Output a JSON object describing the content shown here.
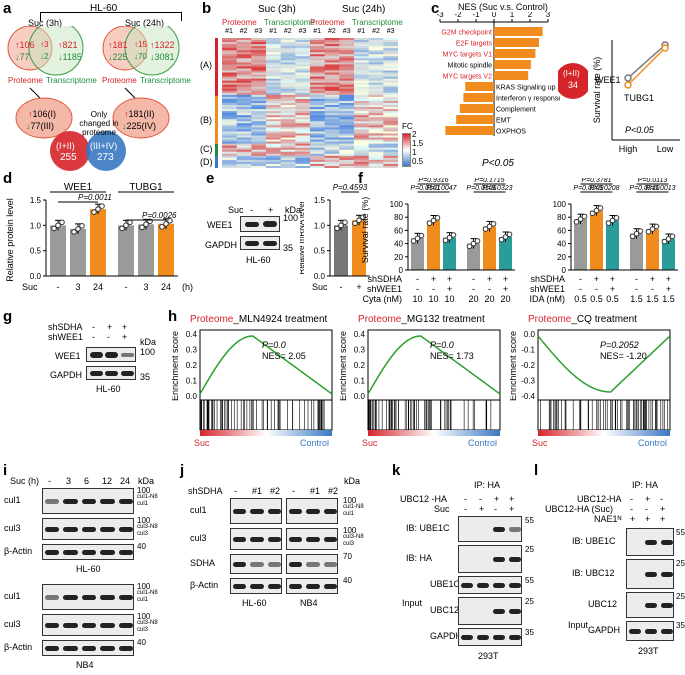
{
  "panel_labels": [
    "a",
    "b",
    "c",
    "d",
    "e",
    "f",
    "g",
    "h",
    "i",
    "j",
    "k",
    "l"
  ],
  "a": {
    "title": "HL-60",
    "suc3": "Suc (3h)",
    "suc24": "Suc (24h)",
    "proteome": "Proteome",
    "transcriptome": "Transcriptome",
    "v3": {
      "up_p": "106",
      "down_p": "77",
      "up_both": "3",
      "down_both": "2",
      "up_t": "821",
      "down_t": "1185"
    },
    "v24": {
      "up_p": "181",
      "down_p": "225",
      "up_both": "15",
      "down_both": "70",
      "up_t": "1322",
      "down_t": "3081"
    },
    "only_changed": "Only changed in proteome",
    "circle3": {
      "l1": "106(I)",
      "l2": "77(III)"
    },
    "circle24": {
      "l1": "181(II)",
      "l2": "225(IV)"
    },
    "sum1": {
      "label": "(I+II)",
      "value": "255"
    },
    "sum2": {
      "label": "(III+IV)",
      "value": "273"
    }
  },
  "b": {
    "suc3": "Suc (3h)",
    "suc24": "Suc (24h)",
    "proteome": "Proteome",
    "transcriptome": "Transcriptome",
    "reps": [
      "#1",
      "#2",
      "#3",
      "#1",
      "#2",
      "#3",
      "#1",
      "#2",
      "#3",
      "#1",
      "#2",
      "#3"
    ],
    "clusters": [
      "(A)",
      "(B)",
      "(C)",
      "(D)"
    ],
    "fc_label": "FC",
    "fc_ticks": [
      "2",
      "1.5",
      "1",
      "0.5"
    ]
  },
  "c": {
    "title": "NES (Suc v.s. Control)",
    "chart_data": {
      "type": "bar",
      "title": "NES (Suc v.s. Control)",
      "categories": [
        "G2M checkpoint",
        "E2F targets",
        "MYC targets V1",
        "Mitotic spindle",
        "MYC targets V2",
        "KRAS Signaling up",
        "Interferon γ response",
        "Complement",
        "EMT",
        "OXPHOS"
      ],
      "values": [
        2.7,
        2.5,
        2.3,
        2.05,
        1.9,
        -1.6,
        -1.7,
        -1.9,
        -2.1,
        -2.7
      ],
      "xlim": [
        -3,
        3
      ],
      "xticks": [
        "-3",
        "-2",
        "-1",
        "0",
        "1",
        "2",
        "3"
      ],
      "highlight": [
        "G2M checkpoint",
        "E2F targets",
        "MYC targets V1",
        "MYC targets V2"
      ]
    },
    "pval": "P<0.05",
    "circle": {
      "label": "(I+II)",
      "value": "34"
    },
    "survival": {
      "type": "line",
      "ylabel": "Survival rate (%)",
      "categories": [
        "High",
        "Low"
      ],
      "series": [
        {
          "name": "WEE1",
          "values": [
            0.62,
            0.95
          ]
        },
        {
          "name": "TUBG1",
          "values": [
            0.55,
            0.92
          ]
        }
      ],
      "pval": "P<0.05"
    }
  },
  "d": {
    "chart_data": {
      "type": "bar",
      "ylabel": "Relative protein level",
      "groups": [
        "WEE1",
        "TUBG1"
      ],
      "categories": [
        "-",
        "3",
        "24",
        "-",
        "3",
        "24"
      ],
      "values": [
        1.0,
        0.93,
        1.32,
        1.0,
        1.02,
        1.03
      ],
      "ylim": [
        0,
        1.5
      ],
      "yticks": [
        "0.0",
        "0.5",
        "1.0",
        "1.5"
      ],
      "pvals": [
        "P=0.0011",
        "P=0.0026"
      ],
      "xlabel_left": "Suc",
      "unit": "(h)"
    }
  },
  "e": {
    "suc": "Suc",
    "minus": "-",
    "plus": "+",
    "kda": "kDa",
    "rows": [
      {
        "name": "WEE1",
        "kda": "100"
      },
      {
        "name": "GAPDH",
        "kda": "35"
      }
    ],
    "cell": "HL-60",
    "chart_data": {
      "type": "bar",
      "ylabel": "Relative mRNA level",
      "categories": [
        "-",
        "+"
      ],
      "values": [
        1.0,
        1.1
      ],
      "ylim": [
        0,
        1.5
      ],
      "yticks": [
        "0.0",
        "0.5",
        "1.0",
        "1.5"
      ],
      "pval": "P=0.4593",
      "xlabel": "Suc"
    }
  },
  "f": {
    "left": {
      "type": "bar",
      "ylabel": "Survival rate (%)",
      "ylim": [
        0,
        100
      ],
      "yticks": [
        "0",
        "20",
        "40",
        "60",
        "80",
        "100"
      ],
      "rows": {
        "shSDHA": [
          "-",
          "+",
          "+",
          "-",
          "+",
          "+"
        ],
        "shWEE1": [
          "-",
          "-",
          "+",
          "-",
          "-",
          "+"
        ],
        "Cyta (nM)": [
          "10",
          "10",
          "10",
          "20",
          "20",
          "20"
        ]
      },
      "values": [
        48,
        75,
        49,
        40,
        66,
        50
      ],
      "pvals": [
        "P=0.9316",
        "P=0.0101",
        "P=0.0047",
        "P=0.1715",
        "P=0.0106",
        "P=0.0323"
      ]
    },
    "right": {
      "type": "bar",
      "ylabel": "Survival rate (%)",
      "ylim": [
        0,
        100
      ],
      "yticks": [
        "0",
        "20",
        "40",
        "60",
        "80",
        "100"
      ],
      "rows": {
        "shSDHA": [
          "-",
          "+",
          "+",
          "-",
          "+",
          "+"
        ],
        "shWEE1": [
          "-",
          "-",
          "+",
          "-",
          "-",
          "+"
        ],
        "IDA (nM)": [
          "0.5",
          "0.5",
          "0.5",
          "1.5",
          "1.5",
          "1.5"
        ]
      },
      "values": [
        77,
        90,
        75,
        55,
        62,
        47
      ],
      "pvals": [
        "P=0.3781",
        "P=0.0209",
        "P=0.0208",
        "P=0.0113",
        "P=0.0210",
        "P=0.0013"
      ]
    }
  },
  "g": {
    "shSDHA": "shSDHA",
    "shWEE1": "shWEE1",
    "kda": "kDa",
    "row1": [
      "-",
      "+",
      "+"
    ],
    "row2": [
      "-",
      "-",
      "+"
    ],
    "rows": [
      {
        "name": "WEE1",
        "kda": "100"
      },
      {
        "name": "GAPDH",
        "kda": "35"
      }
    ],
    "cell": "HL-60"
  },
  "h": {
    "plots": [
      {
        "title_a": "Proteome",
        "title_b": "_MLN4924 treatment",
        "p": "P=0.0",
        "nes": "NES= 2.05",
        "ylabel": "Enrichment score",
        "yticks": [
          "0.4",
          "0.3",
          "0.2",
          "0.1",
          "0.0"
        ],
        "left": "Suc",
        "right": "Control"
      },
      {
        "title_a": "Proteome",
        "title_b": "_MG132 treatment",
        "p": "P=0.0",
        "nes": "NES= 1.73",
        "ylabel": "Enrichment score",
        "yticks": [
          "0.4",
          "0.3",
          "0.2",
          "0.1",
          "0.0"
        ],
        "left": "Suc",
        "right": "Control"
      },
      {
        "title_a": "Proteome",
        "title_b": "_CQ treatment",
        "p": "P=0.2052",
        "nes": "NES= -1.20",
        "ylabel": "Enrichment score",
        "yticks": [
          "0.0",
          "-0.1",
          "-0.2",
          "-0.3",
          "-0.4"
        ],
        "left": "Suc",
        "right": "Control"
      }
    ]
  },
  "i": {
    "suc": "Suc (h)",
    "times": [
      "-",
      "3",
      "6",
      "12",
      "24"
    ],
    "kda": "kDa",
    "block1": {
      "cell": "HL-60",
      "rows": [
        {
          "name": "cul1",
          "kda": "100",
          "marks": [
            "cul1-N8",
            "cul1"
          ]
        },
        {
          "name": "cul3",
          "kda": "100",
          "marks": [
            "cul3-N8",
            "cul3"
          ]
        },
        {
          "name": "β-Actin",
          "kda": "40",
          "marks": []
        }
      ]
    },
    "block2": {
      "cell": "NB4",
      "rows": [
        {
          "name": "cul1",
          "kda": "100",
          "marks": [
            "cul1-N8",
            "cul1"
          ]
        },
        {
          "name": "cul3",
          "kda": "100",
          "marks": [
            "cul3-N8",
            "cul3"
          ]
        },
        {
          "name": "β-Actin",
          "kda": "40",
          "marks": []
        }
      ]
    }
  },
  "j": {
    "shSDHA": "shSDHA",
    "lanes": [
      "-",
      "#1",
      "#2",
      "-",
      "#1",
      "#2"
    ],
    "kda": "kDa",
    "rows": [
      {
        "name": "cul1",
        "kda": "100",
        "marks": [
          "cul1-N8",
          "cul1"
        ]
      },
      {
        "name": "cul3",
        "kda": "100",
        "marks": [
          "cul3-N8",
          "cul3"
        ]
      },
      {
        "name": "SDHA",
        "kda": "70",
        "marks": []
      },
      {
        "name": "β-Actin",
        "kda": "40",
        "marks": []
      }
    ],
    "cells": [
      "HL-60",
      "NB4"
    ]
  },
  "k": {
    "ip": "IP: HA",
    "row1": "UBC12 -HA",
    "row2": "Suc",
    "r1v": [
      "-",
      "-",
      "+",
      "+"
    ],
    "r2v": [
      "-",
      "+",
      "-",
      "+"
    ],
    "rows": [
      {
        "name": "IB: UBE1C",
        "kda": "55"
      },
      {
        "name": "IB: HA",
        "kda": "25"
      },
      {
        "name": "UBE1C",
        "kda": "55"
      },
      {
        "name": "UBC12",
        "kda": "25"
      },
      {
        "name": "GAPDH",
        "kda": "35"
      }
    ],
    "input": "Input",
    "cell": "293T"
  },
  "l": {
    "ip": "IP: HA",
    "row1": "UBC12-HA",
    "row2": "UBC12-HA (Suc)",
    "row3": "NAE1ᴺ",
    "r1v": [
      "-",
      "+",
      "-"
    ],
    "r2v": [
      "-",
      "-",
      "+"
    ],
    "r3v": [
      "+",
      "+",
      "+"
    ],
    "rows": [
      {
        "name": "IB: UBE1C",
        "kda": "55"
      },
      {
        "name": "IB: UBC12",
        "kda": "25"
      },
      {
        "name": "UBC12",
        "kda": "25"
      },
      {
        "name": "GAPDH",
        "kda": "35"
      }
    ],
    "input": "Input",
    "cell": "293T"
  },
  "colors": {
    "orange": "#f08c1e",
    "gray": "#9a9a9a",
    "teal": "#2a9d9b",
    "red": "#d6242b",
    "blue": "#3a78c3",
    "green": "#1f8f3a"
  }
}
